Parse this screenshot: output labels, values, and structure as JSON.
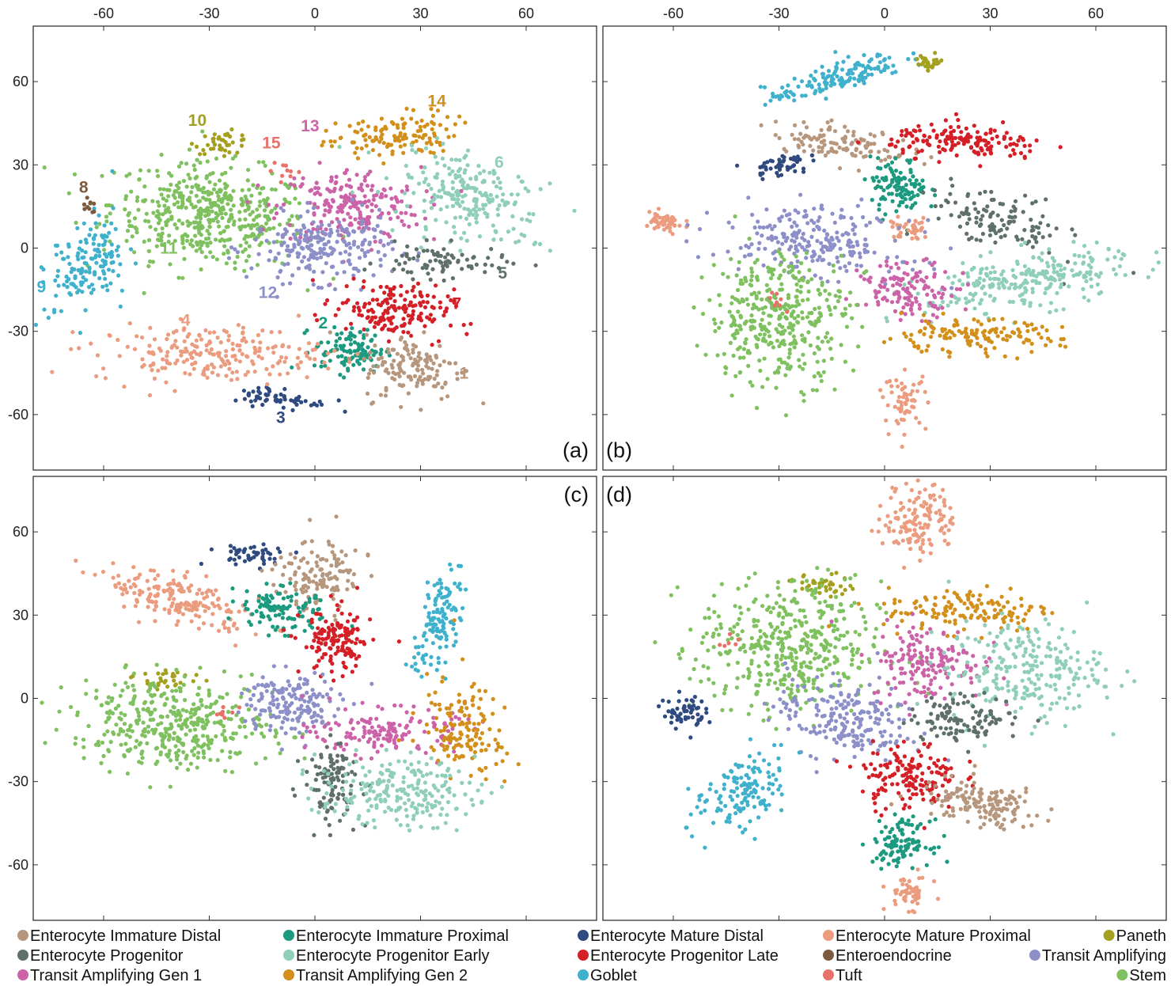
{
  "colors": {
    "Enterocyte Immature Distal": "#b6977d",
    "Enterocyte Immature Proximal": "#1b9a7f",
    "Enterocyte Mature Distal": "#2e4a7f",
    "Enterocyte Mature Proximal": "#eb9b7e",
    "Paneth": "#a4a01f",
    "Enterocyte Progenitor": "#5f6f6a",
    "Enterocyte Progenitor Early": "#8fceb9",
    "Enterocyte Progenitor Late": "#d51f27",
    "Enteroendocrine": "#7c5a40",
    "Transit Amplifying": "#8d8fc9",
    "Transit Amplifying Gen 1": "#cc63a8",
    "Transit Amplifying Gen 2": "#d28f1a",
    "Goblet": "#3fb1cc",
    "Tuft": "#e8716a",
    "Stem": "#7fc05f"
  },
  "legend": [
    [
      "Enterocyte Immature Distal",
      "Enterocyte Immature Proximal",
      "Enterocyte Mature Distal",
      "Enterocyte Mature Proximal",
      "Paneth"
    ],
    [
      "Enterocyte Progenitor",
      "Enterocyte Progenitor Early",
      "Enterocyte Progenitor Late",
      "Enteroendocrine",
      "Transit Amplifying"
    ],
    [
      "Transit Amplifying Gen 1",
      "Transit Amplifying Gen 2",
      "Goblet",
      "Tuft",
      "Stem"
    ]
  ],
  "chart_data": {
    "type": "scatter",
    "title": "",
    "xlabel": "",
    "ylabel": "",
    "xlim": [
      -80,
      80
    ],
    "ylim": [
      -80,
      80
    ],
    "x_ticks": [
      -60,
      -30,
      0,
      30,
      60
    ],
    "y_ticks": [
      -60,
      -30,
      0,
      30,
      60
    ],
    "x_tick_labels": [
      "-60",
      "-30",
      "0",
      "30",
      "60"
    ],
    "y_tick_labels": [
      "-60",
      "-30",
      "0",
      "30",
      "60"
    ],
    "panels": [
      {
        "tag": "(a)",
        "clusters": [
          {
            "cell_type": "Stem",
            "cx": -30,
            "cy": 12,
            "sx": 14,
            "sy": 9,
            "n": 480,
            "rot": -8
          },
          {
            "cell_type": "Paneth",
            "cx": -26,
            "cy": 38,
            "sx": 4,
            "sy": 2,
            "n": 40,
            "rot": 0
          },
          {
            "cell_type": "Transit Amplifying Gen 1",
            "cx": 10,
            "cy": 15,
            "sx": 10,
            "sy": 7,
            "n": 220,
            "rot": 0
          },
          {
            "cell_type": "Transit Amplifying Gen 2",
            "cx": 22,
            "cy": 40,
            "sx": 9,
            "sy": 4,
            "n": 130,
            "rot": 10
          },
          {
            "cell_type": "Enterocyte Progenitor Early",
            "cx": 44,
            "cy": 18,
            "sx": 11,
            "sy": 7,
            "n": 220,
            "rot": -25
          },
          {
            "cell_type": "Transit Amplifying",
            "cx": 2,
            "cy": 0,
            "sx": 10,
            "sy": 6,
            "n": 220,
            "rot": 0
          },
          {
            "cell_type": "Enterocyte Progenitor",
            "cx": 36,
            "cy": -5,
            "sx": 9,
            "sy": 3,
            "n": 80,
            "rot": 0
          },
          {
            "cell_type": "Enterocyte Progenitor Late",
            "cx": 22,
            "cy": -22,
            "sx": 8,
            "sy": 5,
            "n": 170,
            "rot": -10
          },
          {
            "cell_type": "Enterocyte Immature Proximal",
            "cx": 10,
            "cy": -37,
            "sx": 5,
            "sy": 4,
            "n": 110,
            "rot": 0
          },
          {
            "cell_type": "Enterocyte Immature Distal",
            "cx": 28,
            "cy": -43,
            "sx": 7,
            "sy": 6,
            "n": 140,
            "rot": 0
          },
          {
            "cell_type": "Enterocyte Mature Distal",
            "cx": -10,
            "cy": -54,
            "sx": 7,
            "sy": 2,
            "n": 60,
            "rot": -10
          },
          {
            "cell_type": "Enterocyte Mature Proximal",
            "cx": -30,
            "cy": -38,
            "sx": 16,
            "sy": 5,
            "n": 220,
            "rot": 0
          },
          {
            "cell_type": "Goblet",
            "cx": -65,
            "cy": -5,
            "sx": 5,
            "sy": 9,
            "n": 150,
            "rot": -30
          },
          {
            "cell_type": "Enteroendocrine",
            "cx": -64,
            "cy": 15,
            "sx": 1,
            "sy": 1.5,
            "n": 10,
            "rot": 0
          },
          {
            "cell_type": "Tuft",
            "cx": -8,
            "cy": 28,
            "sx": 2,
            "sy": 2,
            "n": 10,
            "rot": 0
          }
        ],
        "cluster_numbers": [
          {
            "text": "1",
            "x": 41,
            "y": -47,
            "cell_type": "Enterocyte Immature Distal"
          },
          {
            "text": "2",
            "x": 1,
            "y": -29,
            "cell_type": "Enterocyte Immature Proximal"
          },
          {
            "text": "3",
            "x": -11,
            "y": -63,
            "cell_type": "Enterocyte Mature Distal"
          },
          {
            "text": "4",
            "x": -38,
            "y": -28,
            "cell_type": "Enterocyte Mature Proximal"
          },
          {
            "text": "5",
            "x": 52,
            "y": -11,
            "cell_type": "Enterocyte Progenitor"
          },
          {
            "text": "6",
            "x": 51,
            "y": 29,
            "cell_type": "Enterocyte Progenitor Early"
          },
          {
            "text": "7",
            "x": 39,
            "y": -22,
            "cell_type": "Enterocyte Progenitor Late"
          },
          {
            "text": "8",
            "x": -67,
            "y": 20,
            "cell_type": "Enteroendocrine"
          },
          {
            "text": "9",
            "x": -79,
            "y": -16,
            "cell_type": "Goblet"
          },
          {
            "text": "10",
            "x": -36,
            "y": 44,
            "cell_type": "Paneth"
          },
          {
            "text": "11",
            "x": -44,
            "y": -2,
            "cell_type": "Stem"
          },
          {
            "text": "12",
            "x": -16,
            "y": -18,
            "cell_type": "Transit Amplifying"
          },
          {
            "text": "13",
            "x": -4,
            "y": 42,
            "cell_type": "Transit Amplifying Gen 1"
          },
          {
            "text": "15",
            "x": -15,
            "y": 36,
            "cell_type": "Tuft"
          },
          {
            "text": "14",
            "x": 32,
            "y": 51,
            "cell_type": "Transit Amplifying Gen 2"
          }
        ]
      },
      {
        "tag": "(b)",
        "clusters": [
          {
            "cell_type": "Goblet",
            "cx": -14,
            "cy": 61,
            "sx": 10,
            "sy": 2.5,
            "n": 150,
            "rot": 22
          },
          {
            "cell_type": "Paneth",
            "cx": 13,
            "cy": 67,
            "sx": 2,
            "sy": 1.5,
            "n": 30,
            "rot": 0
          },
          {
            "cell_type": "Enterocyte Immature Distal",
            "cx": -12,
            "cy": 38,
            "sx": 10,
            "sy": 3,
            "n": 120,
            "rot": -10
          },
          {
            "cell_type": "Enterocyte Mature Distal",
            "cx": -30,
            "cy": 30,
            "sx": 4,
            "sy": 2,
            "n": 50,
            "rot": 10
          },
          {
            "cell_type": "Enterocyte Immature Proximal",
            "cx": 4,
            "cy": 22,
            "sx": 4,
            "sy": 5,
            "n": 110,
            "rot": 0
          },
          {
            "cell_type": "Enterocyte Progenitor Late",
            "cx": 24,
            "cy": 38,
            "sx": 11,
            "sy": 3,
            "n": 160,
            "rot": -5
          },
          {
            "cell_type": "Enterocyte Mature Proximal",
            "cx": -63,
            "cy": 9,
            "sx": 3,
            "sy": 2,
            "n": 50,
            "rot": 0
          },
          {
            "cell_type": "Enterocyte Mature Proximal",
            "cx": 7,
            "cy": 7,
            "sx": 3,
            "sy": 2,
            "n": 40,
            "rot": 0
          },
          {
            "cell_type": "Transit Amplifying",
            "cx": -20,
            "cy": 3,
            "sx": 13,
            "sy": 6,
            "n": 230,
            "rot": -10
          },
          {
            "cell_type": "Enterocyte Progenitor",
            "cx": 32,
            "cy": 10,
            "sx": 10,
            "sy": 5,
            "n": 120,
            "rot": -20
          },
          {
            "cell_type": "Enterocyte Progenitor Early",
            "cx": 40,
            "cy": -12,
            "sx": 15,
            "sy": 5,
            "n": 250,
            "rot": 12
          },
          {
            "cell_type": "Transit Amplifying Gen 1",
            "cx": 7,
            "cy": -15,
            "sx": 7,
            "sy": 5,
            "n": 130,
            "rot": 0
          },
          {
            "cell_type": "Stem",
            "cx": -30,
            "cy": -25,
            "sx": 10,
            "sy": 12,
            "n": 380,
            "rot": 0
          },
          {
            "cell_type": "Transit Amplifying Gen 2",
            "cx": 24,
            "cy": -32,
            "sx": 13,
            "sy": 3,
            "n": 140,
            "rot": 0
          },
          {
            "cell_type": "Enterocyte Mature Proximal",
            "cx": 6,
            "cy": -55,
            "sx": 3,
            "sy": 5,
            "n": 60,
            "rot": 0
          },
          {
            "cell_type": "Tuft",
            "cx": -30,
            "cy": -20,
            "sx": 2,
            "sy": 2,
            "n": 8,
            "rot": 0
          }
        ],
        "cluster_numbers": []
      },
      {
        "tag": "(c)",
        "clusters": [
          {
            "cell_type": "Enterocyte Mature Distal",
            "cx": -18,
            "cy": 52,
            "sx": 6,
            "sy": 2,
            "n": 50,
            "rot": 0
          },
          {
            "cell_type": "Enterocyte Immature Distal",
            "cx": 2,
            "cy": 45,
            "sx": 6,
            "sy": 7,
            "n": 130,
            "rot": -30
          },
          {
            "cell_type": "Enterocyte Mature Proximal",
            "cx": -38,
            "cy": 35,
            "sx": 11,
            "sy": 4,
            "n": 180,
            "rot": -20
          },
          {
            "cell_type": "Enterocyte Immature Proximal",
            "cx": -10,
            "cy": 32,
            "sx": 6,
            "sy": 4,
            "n": 110,
            "rot": -20
          },
          {
            "cell_type": "Enterocyte Progenitor Late",
            "cx": 6,
            "cy": 20,
            "sx": 5,
            "sy": 6,
            "n": 140,
            "rot": 0
          },
          {
            "cell_type": "Goblet",
            "cx": 35,
            "cy": 27,
            "sx": 3,
            "sy": 9,
            "n": 130,
            "rot": -15
          },
          {
            "cell_type": "Paneth",
            "cx": -42,
            "cy": 7,
            "sx": 5,
            "sy": 2,
            "n": 30,
            "rot": 0
          },
          {
            "cell_type": "Stem",
            "cx": -40,
            "cy": -9,
            "sx": 14,
            "sy": 8,
            "n": 400,
            "rot": -5
          },
          {
            "cell_type": "Transit Amplifying",
            "cx": -7,
            "cy": -2,
            "sx": 7,
            "sy": 6,
            "n": 170,
            "rot": 0
          },
          {
            "cell_type": "Transit Amplifying Gen 1",
            "cx": 20,
            "cy": -12,
            "sx": 10,
            "sy": 4,
            "n": 150,
            "rot": 0
          },
          {
            "cell_type": "Transit Amplifying Gen 2",
            "cx": 42,
            "cy": -12,
            "sx": 6,
            "sy": 9,
            "n": 140,
            "rot": 20
          },
          {
            "cell_type": "Enterocyte Progenitor",
            "cx": 5,
            "cy": -30,
            "sx": 4,
            "sy": 7,
            "n": 110,
            "rot": 0
          },
          {
            "cell_type": "Enterocyte Progenitor Early",
            "cx": 23,
            "cy": -34,
            "sx": 11,
            "sy": 6,
            "n": 220,
            "rot": 0
          },
          {
            "cell_type": "Tuft",
            "cx": -25,
            "cy": -5,
            "sx": 2,
            "sy": 2,
            "n": 8,
            "rot": 0
          }
        ],
        "cluster_numbers": []
      },
      {
        "tag": "(d)",
        "clusters": [
          {
            "cell_type": "Enterocyte Mature Proximal",
            "cx": 10,
            "cy": 65,
            "sx": 5,
            "sy": 7,
            "n": 140,
            "rot": 0
          },
          {
            "cell_type": "Paneth",
            "cx": -17,
            "cy": 41,
            "sx": 4,
            "sy": 2,
            "n": 40,
            "rot": 0
          },
          {
            "cell_type": "Stem",
            "cx": -27,
            "cy": 18,
            "sx": 13,
            "sy": 12,
            "n": 430,
            "rot": 0
          },
          {
            "cell_type": "Transit Amplifying Gen 2",
            "cx": 24,
            "cy": 32,
            "sx": 12,
            "sy": 4,
            "n": 140,
            "rot": 0
          },
          {
            "cell_type": "Transit Amplifying Gen 1",
            "cx": 12,
            "cy": 13,
            "sx": 8,
            "sy": 7,
            "n": 170,
            "rot": 0
          },
          {
            "cell_type": "Enterocyte Progenitor Early",
            "cx": 40,
            "cy": 10,
            "sx": 11,
            "sy": 9,
            "n": 240,
            "rot": 0
          },
          {
            "cell_type": "Transit Amplifying",
            "cx": -12,
            "cy": -7,
            "sx": 10,
            "sy": 7,
            "n": 210,
            "rot": -15
          },
          {
            "cell_type": "Enterocyte Progenitor",
            "cx": 23,
            "cy": -7,
            "sx": 8,
            "sy": 4,
            "n": 110,
            "rot": 0
          },
          {
            "cell_type": "Enterocyte Mature Distal",
            "cx": -57,
            "cy": -5,
            "sx": 3,
            "sy": 3,
            "n": 60,
            "rot": 0
          },
          {
            "cell_type": "Enterocyte Progenitor Late",
            "cx": 7,
            "cy": -28,
            "sx": 7,
            "sy": 6,
            "n": 150,
            "rot": 0
          },
          {
            "cell_type": "Goblet",
            "cx": -40,
            "cy": -35,
            "sx": 5,
            "sy": 8,
            "n": 140,
            "rot": -35
          },
          {
            "cell_type": "Enterocyte Immature Distal",
            "cx": 27,
            "cy": -38,
            "sx": 9,
            "sy": 4,
            "n": 150,
            "rot": -10
          },
          {
            "cell_type": "Enterocyte Immature Proximal",
            "cx": 5,
            "cy": -52,
            "sx": 4,
            "sy": 4,
            "n": 110,
            "rot": 0
          },
          {
            "cell_type": "Enterocyte Mature Proximal",
            "cx": 7,
            "cy": -70,
            "sx": 3,
            "sy": 3,
            "n": 50,
            "rot": 0
          },
          {
            "cell_type": "Tuft",
            "cx": -45,
            "cy": 20,
            "sx": 2,
            "sy": 2,
            "n": 6,
            "rot": 0
          }
        ],
        "cluster_numbers": []
      }
    ]
  }
}
